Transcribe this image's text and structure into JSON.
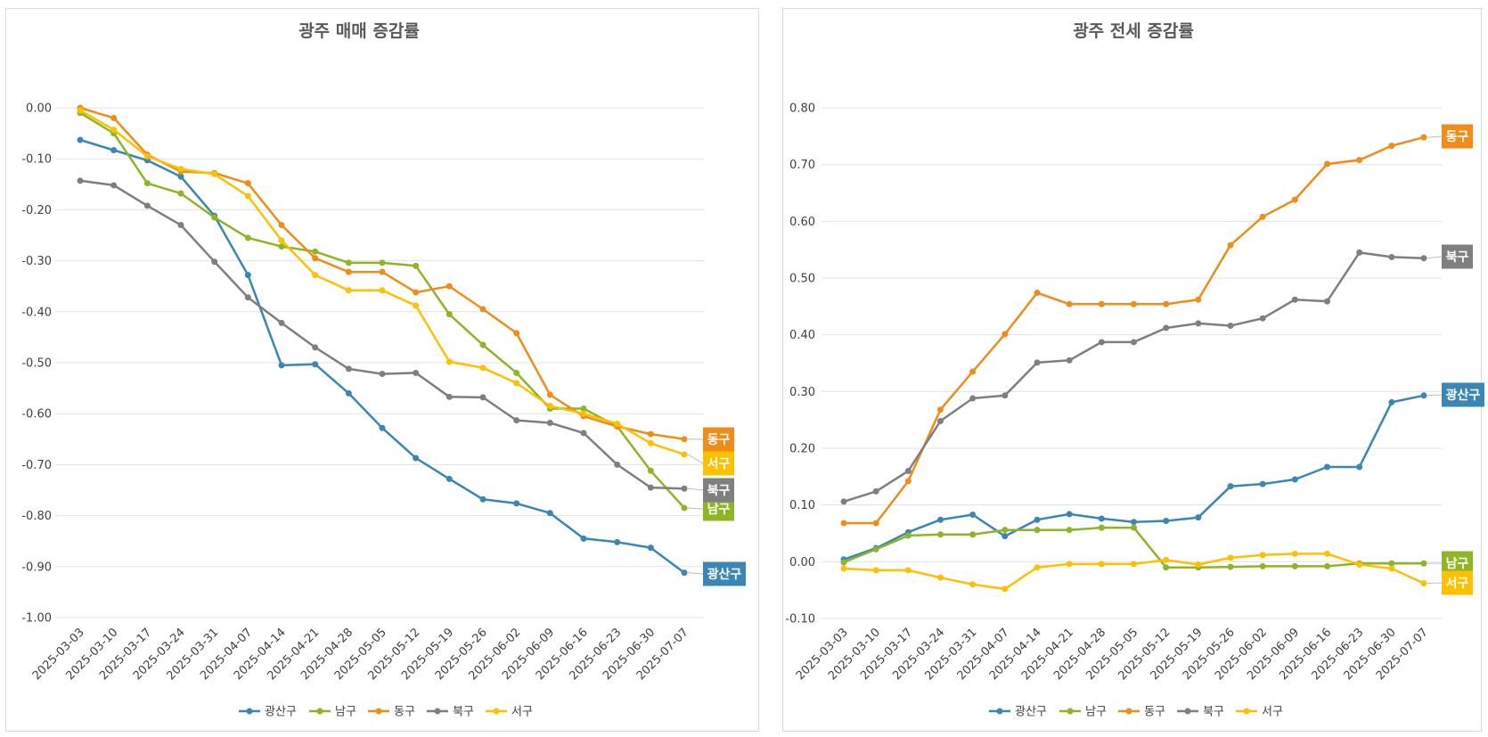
{
  "chart_data": [
    {
      "type": "line",
      "title": "광주 매매 증감률",
      "x": [
        "2025-03-03",
        "2025-03-10",
        "2025-03-17",
        "2025-03-24",
        "2025-03-31",
        "2025-04-07",
        "2025-04-14",
        "2025-04-21",
        "2025-04-28",
        "2025-05-05",
        "2025-05-12",
        "2025-05-19",
        "2025-05-26",
        "2025-06-02",
        "2025-06-09",
        "2025-06-16",
        "2025-06-23",
        "2025-06-30",
        "2025-07-07"
      ],
      "ylim": [
        -1.0,
        0.0
      ],
      "yticks": [
        "0.00",
        "-0.10",
        "-0.20",
        "-0.30",
        "-0.40",
        "-0.50",
        "-0.60",
        "-0.70",
        "-0.80",
        "-0.90",
        "-1.00"
      ],
      "grid": true,
      "legend": "bottom",
      "series": [
        {
          "name": "광산구",
          "color": "#3a86b4",
          "values": [
            -0.063,
            -0.083,
            -0.103,
            -0.135,
            -0.212,
            -0.328,
            -0.505,
            -0.503,
            -0.56,
            -0.628,
            -0.687,
            -0.728,
            -0.768,
            -0.776,
            -0.795,
            -0.845,
            -0.852,
            -0.863,
            -0.912
          ]
        },
        {
          "name": "남구",
          "color": "#8db525",
          "values": [
            -0.01,
            -0.05,
            -0.148,
            -0.168,
            -0.215,
            -0.255,
            -0.272,
            -0.282,
            -0.304,
            -0.304,
            -0.31,
            -0.405,
            -0.465,
            -0.52,
            -0.59,
            -0.59,
            -0.625,
            -0.712,
            -0.785
          ]
        },
        {
          "name": "동구",
          "color": "#f28c18",
          "values": [
            0.0,
            -0.02,
            -0.092,
            -0.125,
            -0.128,
            -0.148,
            -0.23,
            -0.295,
            -0.322,
            -0.322,
            -0.362,
            -0.35,
            -0.395,
            -0.442,
            -0.563,
            -0.605,
            -0.625,
            -0.64,
            -0.65
          ]
        },
        {
          "name": "북구",
          "color": "#7f7f7f",
          "values": [
            -0.143,
            -0.152,
            -0.192,
            -0.23,
            -0.302,
            -0.372,
            -0.422,
            -0.47,
            -0.512,
            -0.522,
            -0.52,
            -0.567,
            -0.568,
            -0.613,
            -0.618,
            -0.638,
            -0.7,
            -0.745,
            -0.747
          ]
        },
        {
          "name": "서구",
          "color": "#ffc000",
          "values": [
            -0.005,
            -0.043,
            -0.095,
            -0.12,
            -0.13,
            -0.173,
            -0.26,
            -0.328,
            -0.358,
            -0.358,
            -0.388,
            -0.498,
            -0.51,
            -0.54,
            -0.585,
            -0.6,
            -0.62,
            -0.658,
            -0.68
          ]
        }
      ]
    },
    {
      "type": "line",
      "title": "광주 전세 증감률",
      "x": [
        "2025-03-03",
        "2025-03-10",
        "2025-03-17",
        "2025-03-24",
        "2025-03-31",
        "2025-04-07",
        "2025-04-14",
        "2025-04-21",
        "2025-04-28",
        "2025-05-05",
        "2025-05-12",
        "2025-05-19",
        "2025-05-26",
        "2025-06-02",
        "2025-06-09",
        "2025-06-16",
        "2025-06-23",
        "2025-06-30",
        "2025-07-07"
      ],
      "ylim": [
        -0.1,
        0.8
      ],
      "yticks": [
        "0.80",
        "0.70",
        "0.60",
        "0.50",
        "0.40",
        "0.30",
        "0.20",
        "0.10",
        "0.00",
        "-0.10"
      ],
      "grid": true,
      "legend": "bottom",
      "series": [
        {
          "name": "광산구",
          "color": "#3a86b4",
          "values": [
            0.004,
            0.024,
            0.052,
            0.074,
            0.083,
            0.045,
            0.074,
            0.084,
            0.076,
            0.07,
            0.072,
            0.078,
            0.133,
            0.137,
            0.145,
            0.167,
            0.167,
            0.281,
            0.293
          ]
        },
        {
          "name": "남구",
          "color": "#8db525",
          "values": [
            -0.001,
            0.022,
            0.046,
            0.048,
            0.048,
            0.056,
            0.056,
            0.056,
            0.06,
            0.06,
            -0.01,
            -0.01,
            -0.009,
            -0.008,
            -0.008,
            -0.008,
            -0.003,
            -0.003,
            -0.003
          ]
        },
        {
          "name": "동구",
          "color": "#f28c18",
          "values": [
            0.068,
            0.068,
            0.142,
            0.268,
            0.335,
            0.401,
            0.474,
            0.454,
            0.454,
            0.454,
            0.454,
            0.462,
            0.558,
            0.608,
            0.638,
            0.701,
            0.708,
            0.733,
            0.748
          ]
        },
        {
          "name": "북구",
          "color": "#7f7f7f",
          "values": [
            0.106,
            0.124,
            0.16,
            0.248,
            0.288,
            0.293,
            0.351,
            0.355,
            0.387,
            0.387,
            0.412,
            0.42,
            0.416,
            0.429,
            0.462,
            0.459,
            0.545,
            0.537,
            0.535
          ]
        },
        {
          "name": "서구",
          "color": "#ffc000",
          "values": [
            -0.012,
            -0.015,
            -0.015,
            -0.028,
            -0.04,
            -0.048,
            -0.01,
            -0.004,
            -0.004,
            -0.004,
            0.003,
            -0.005,
            0.007,
            0.012,
            0.014,
            0.014,
            -0.005,
            -0.012,
            -0.038
          ]
        }
      ]
    }
  ]
}
